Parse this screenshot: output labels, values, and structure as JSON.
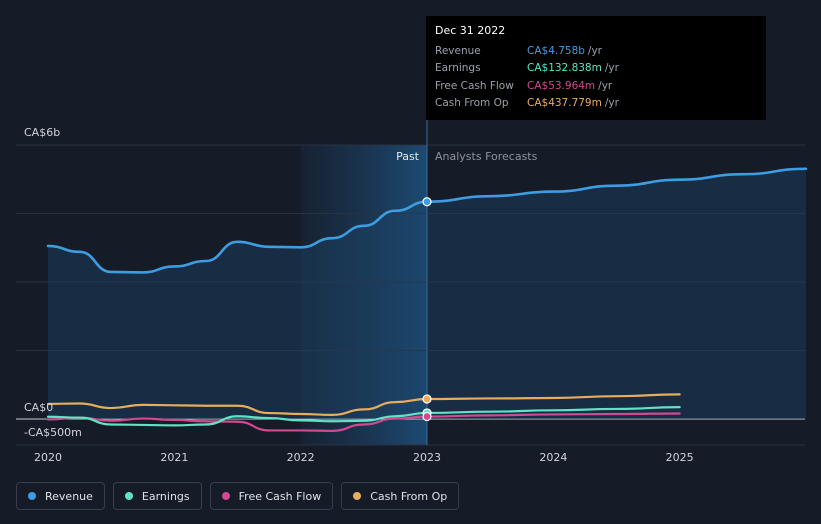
{
  "chart_data": {
    "type": "line",
    "y_axis_labels": {
      "top": "CA$6b",
      "zero": "CA$0",
      "bottom": "-CA$500m"
    },
    "ylim": [
      -500,
      6000
    ],
    "xlim": [
      2020,
      2026
    ],
    "x_ticks": [
      "2020",
      "2021",
      "2022",
      "2023",
      "2024",
      "2025"
    ],
    "divider_x": 2023,
    "past_label": "Past",
    "forecast_label": "Analysts Forecasts",
    "series": [
      {
        "name": "Revenue",
        "color": "#3d9de3",
        "points": [
          [
            2020,
            3790
          ],
          [
            2020.25,
            3660
          ],
          [
            2020.5,
            3220
          ],
          [
            2020.75,
            3210
          ],
          [
            2021,
            3340
          ],
          [
            2021.25,
            3460
          ],
          [
            2021.5,
            3880
          ],
          [
            2021.75,
            3770
          ],
          [
            2022,
            3760
          ],
          [
            2022.25,
            3960
          ],
          [
            2022.5,
            4230
          ],
          [
            2022.75,
            4560
          ],
          [
            2023,
            4758
          ],
          [
            2023.5,
            4880
          ],
          [
            2024,
            4980
          ],
          [
            2024.5,
            5110
          ],
          [
            2025,
            5240
          ],
          [
            2025.5,
            5360
          ],
          [
            2026,
            5480
          ]
        ]
      },
      {
        "name": "Earnings",
        "color": "#5fe3c5",
        "points": [
          [
            2020,
            50
          ],
          [
            2020.25,
            30
          ],
          [
            2020.5,
            -120
          ],
          [
            2020.75,
            -130
          ],
          [
            2021,
            -140
          ],
          [
            2021.25,
            -120
          ],
          [
            2021.5,
            60
          ],
          [
            2021.75,
            20
          ],
          [
            2022,
            -30
          ],
          [
            2022.25,
            -50
          ],
          [
            2022.5,
            -40
          ],
          [
            2022.75,
            60
          ],
          [
            2023,
            132.838
          ],
          [
            2023.5,
            160
          ],
          [
            2024,
            190
          ],
          [
            2024.5,
            220
          ],
          [
            2025,
            260
          ]
        ]
      },
      {
        "name": "Free Cash Flow",
        "color": "#d1498f",
        "points": [
          [
            2020,
            -10
          ],
          [
            2020.25,
            30
          ],
          [
            2020.5,
            -40
          ],
          [
            2020.75,
            10
          ],
          [
            2021,
            -20
          ],
          [
            2021.25,
            -50
          ],
          [
            2021.5,
            -60
          ],
          [
            2021.75,
            -250
          ],
          [
            2022,
            -250
          ],
          [
            2022.25,
            -260
          ],
          [
            2022.5,
            -120
          ],
          [
            2022.75,
            10
          ],
          [
            2023,
            53.964
          ],
          [
            2023.5,
            80
          ],
          [
            2024,
            100
          ],
          [
            2024.5,
            110
          ],
          [
            2025,
            120
          ]
        ]
      },
      {
        "name": "Cash From Op",
        "color": "#e8ad5c",
        "points": [
          [
            2020,
            330
          ],
          [
            2020.25,
            340
          ],
          [
            2020.5,
            240
          ],
          [
            2020.75,
            310
          ],
          [
            2021,
            300
          ],
          [
            2021.25,
            290
          ],
          [
            2021.5,
            290
          ],
          [
            2021.75,
            130
          ],
          [
            2022,
            110
          ],
          [
            2022.25,
            90
          ],
          [
            2022.5,
            210
          ],
          [
            2022.75,
            370
          ],
          [
            2023,
            437.779
          ],
          [
            2023.5,
            450
          ],
          [
            2024,
            460
          ],
          [
            2024.5,
            500
          ],
          [
            2025,
            540
          ]
        ]
      }
    ],
    "tooltip": {
      "date": "Dec 31 2022",
      "rows": [
        {
          "label": "Revenue",
          "value": "CA$4.758b",
          "unit": "/yr",
          "color": "#3d9de3"
        },
        {
          "label": "Earnings",
          "value": "CA$132.838m",
          "unit": "/yr",
          "color": "#5fe3c5"
        },
        {
          "label": "Free Cash Flow",
          "value": "CA$53.964m",
          "unit": "/yr",
          "color": "#d1498f"
        },
        {
          "label": "Cash From Op",
          "value": "CA$437.779m",
          "unit": "/yr",
          "color": "#e8ad5c"
        }
      ]
    },
    "legend": [
      {
        "label": "Revenue",
        "color": "#3d9de3"
      },
      {
        "label": "Earnings",
        "color": "#5fe3c5"
      },
      {
        "label": "Free Cash Flow",
        "color": "#d1498f"
      },
      {
        "label": "Cash From Op",
        "color": "#e8ad5c"
      }
    ]
  }
}
